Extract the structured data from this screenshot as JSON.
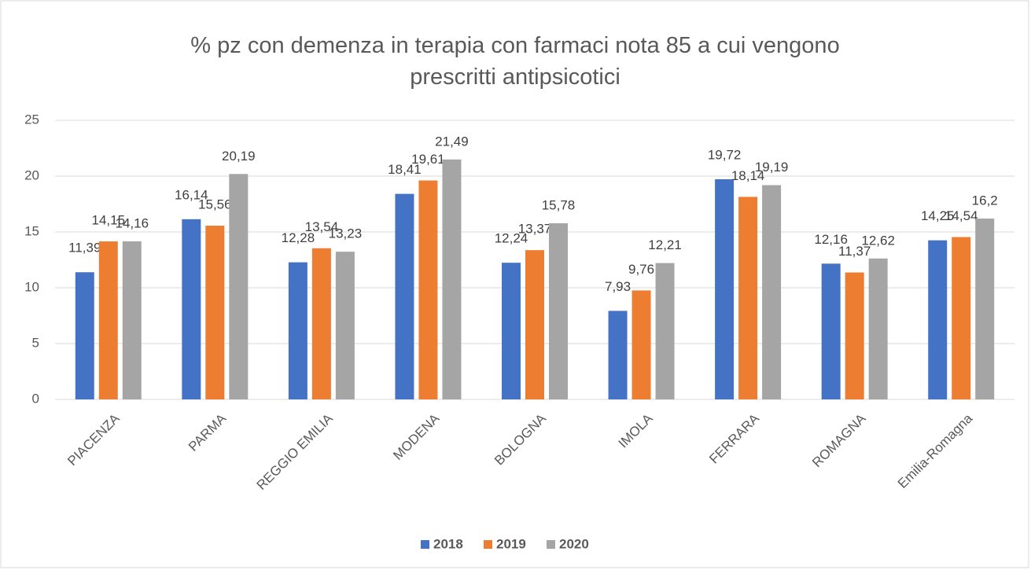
{
  "chart_data": {
    "type": "bar",
    "title": "% pz con demenza in terapia con farmaci nota 85 a cui vengono prescritti antipsicotici",
    "categories": [
      "PIACENZA",
      "PARMA",
      "REGGIO EMILIA",
      "MODENA",
      "BOLOGNA",
      "IMOLA",
      "FERRARA",
      "ROMAGNA",
      "Emilia-Romagna"
    ],
    "series": [
      {
        "name": "2018",
        "color": "#4472c4",
        "values": [
          11.39,
          16.14,
          12.28,
          18.41,
          12.24,
          7.93,
          19.72,
          12.16,
          14.25
        ],
        "value_labels": [
          "11,39",
          "16,14",
          "12,28",
          "18,41",
          "12,24",
          "7,93",
          "19,72",
          "12,16",
          "14,25"
        ]
      },
      {
        "name": "2019",
        "color": "#ed7d31",
        "values": [
          14.15,
          15.56,
          13.54,
          19.61,
          13.37,
          9.76,
          18.14,
          11.37,
          14.54
        ],
        "value_labels": [
          "14,15",
          "15,56",
          "13,54",
          "19,61",
          "13,37",
          "9,76",
          "18,14",
          "11,37",
          "14,54"
        ]
      },
      {
        "name": "2020",
        "color": "#a5a5a5",
        "values": [
          14.16,
          20.19,
          13.23,
          21.49,
          15.78,
          12.21,
          19.19,
          12.62,
          16.2
        ],
        "value_labels": [
          "14,16",
          "20,19",
          "13,23",
          "21,49",
          "15,78",
          "12,21",
          "19,19",
          "12,62",
          "16,2"
        ]
      }
    ],
    "ylim": [
      0,
      25
    ],
    "yticks": [
      0,
      5,
      10,
      15,
      20,
      25
    ],
    "grid": true,
    "legend": "bottom"
  }
}
